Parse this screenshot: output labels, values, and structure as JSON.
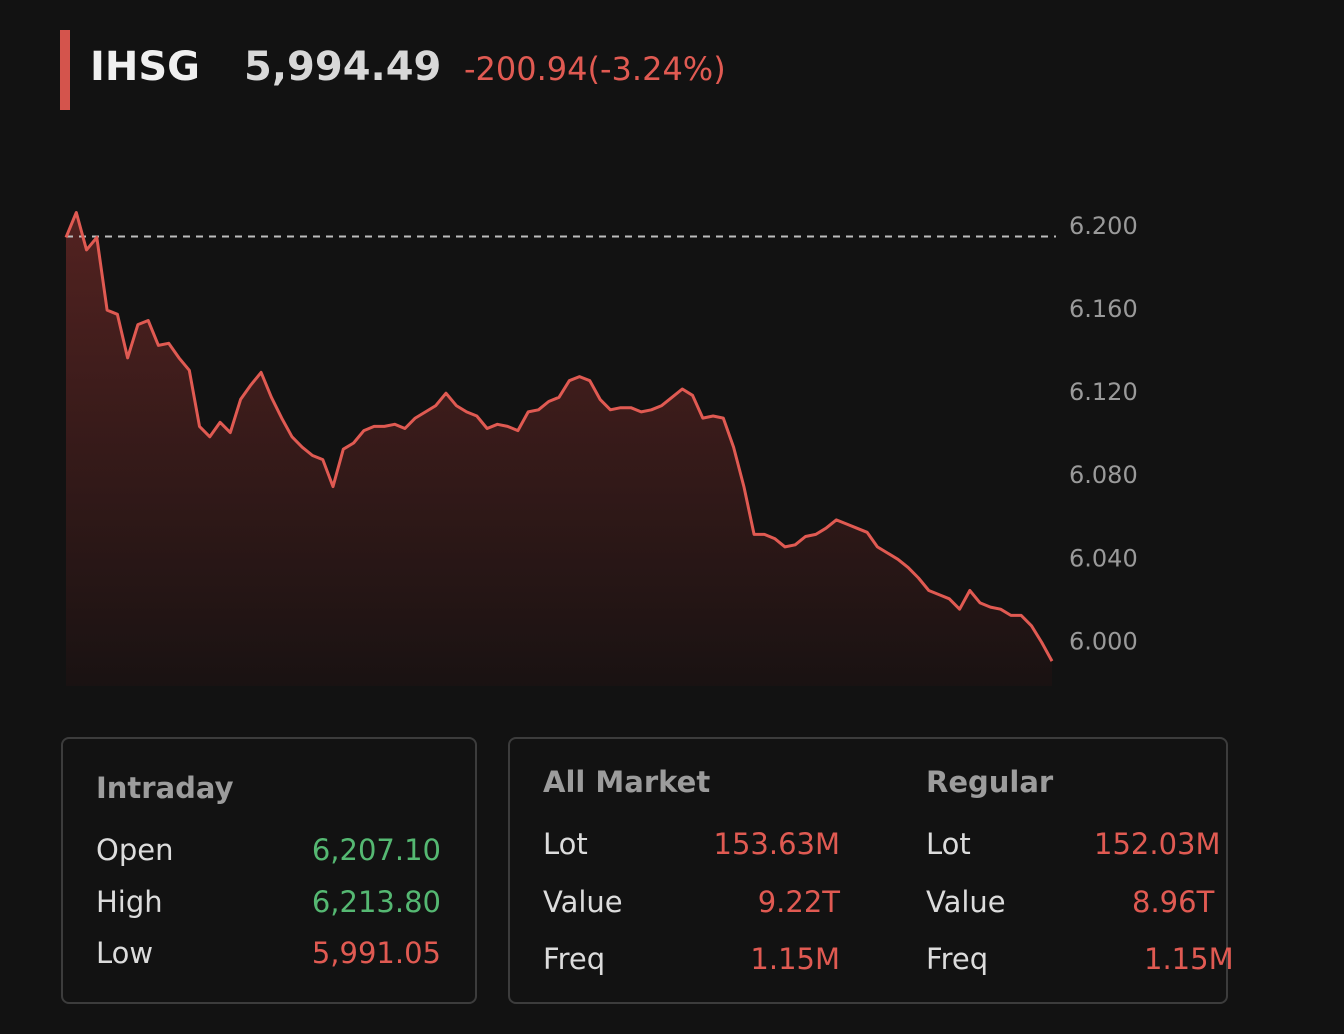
{
  "header": {
    "ticker": "IHSG",
    "price": "5,994.49",
    "change": "-200.94(-3.24%)"
  },
  "chart_data": {
    "type": "line",
    "color": "#e05a52",
    "values": [
      6195,
      6207,
      6189,
      6195,
      6160,
      6158,
      6137,
      6153,
      6155,
      6143,
      6144,
      6137,
      6131,
      6104,
      6099,
      6106,
      6101,
      6117,
      6124,
      6130,
      6118,
      6108,
      6099,
      6094,
      6090,
      6088,
      6075,
      6093,
      6096,
      6102,
      6104,
      6104,
      6105,
      6103,
      6108,
      6111,
      6114,
      6120,
      6114,
      6111,
      6109,
      6103,
      6105,
      6104,
      6102,
      6111,
      6112,
      6116,
      6118,
      6126,
      6128,
      6126,
      6117,
      6112,
      6113,
      6113,
      6111,
      6112,
      6114,
      6118,
      6122,
      6119,
      6108,
      6109,
      6108,
      6094,
      6075,
      6052,
      6052,
      6050,
      6046,
      6047,
      6051,
      6052,
      6055,
      6059,
      6057,
      6055,
      6053,
      6046,
      6043,
      6040,
      6036,
      6031,
      6025,
      6023,
      6021,
      6016,
      6025,
      6019,
      6017,
      6016,
      6013,
      6013,
      6008,
      6000,
      5991
    ],
    "ylim": [
      5979,
      6213.5
    ],
    "yticks": [
      {
        "value": 6000,
        "label": "6.000"
      },
      {
        "value": 6040,
        "label": "6.040"
      },
      {
        "value": 6080,
        "label": "6.080"
      },
      {
        "value": 6120,
        "label": "6.120"
      },
      {
        "value": 6160,
        "label": "6.160"
      },
      {
        "value": 6200,
        "label": "6.200"
      }
    ],
    "reference_line": 6195.43
  },
  "intraday": {
    "title": "Intraday",
    "rows": [
      [
        "Open",
        "6,207.10"
      ],
      [
        "High",
        "6,213.80"
      ],
      [
        "Low",
        "5,991.05"
      ]
    ]
  },
  "all_market": {
    "title": "All Market",
    "rows": [
      [
        "Lot",
        "153.63M"
      ],
      [
        "Value",
        "9.22T"
      ],
      [
        "Freq",
        "1.15M"
      ]
    ]
  },
  "regular": {
    "title": "Regular",
    "rows": [
      [
        "Lot",
        "152.03M"
      ],
      [
        "Value",
        "8.96T"
      ],
      [
        "Freq",
        "1.15M"
      ]
    ]
  }
}
